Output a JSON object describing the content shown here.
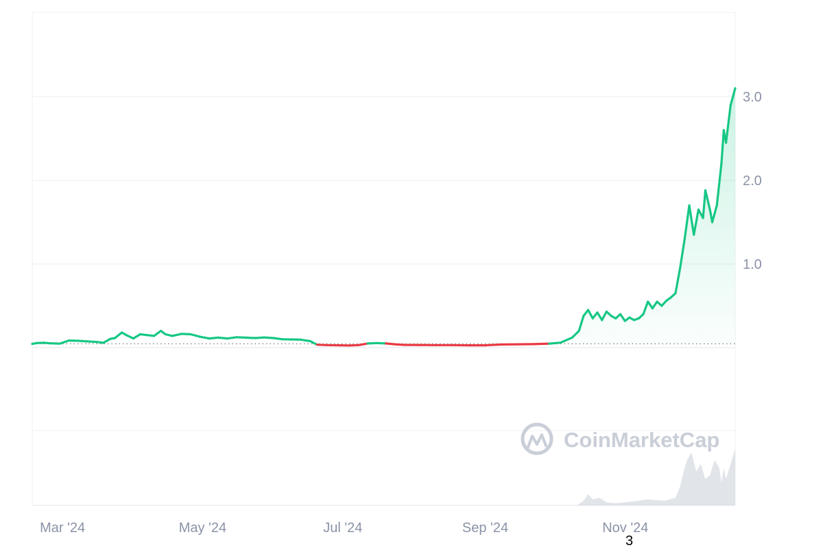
{
  "chart_data": {
    "type": "area",
    "title": "",
    "xlabel": "",
    "ylabel": "",
    "x_axis_type": "date",
    "baseline_value": 0.046,
    "ylim": [
      -0.9,
      3.9
    ],
    "x_range": [
      "2024-02-21",
      "2024-12-23"
    ],
    "y_ticks": [
      {
        "value": 1.0,
        "label": "1.0"
      },
      {
        "value": 2.0,
        "label": "2.0"
      },
      {
        "value": 3.0,
        "label": "3.0"
      }
    ],
    "x_ticks": [
      {
        "date": "2024-03-01",
        "label": "Mar '24"
      },
      {
        "date": "2024-05-01",
        "label": "May '24"
      },
      {
        "date": "2024-07-01",
        "label": "Jul '24"
      },
      {
        "date": "2024-09-01",
        "label": "Sep '24"
      },
      {
        "date": "2024-11-01",
        "label": "Nov '24"
      }
    ],
    "grid": true,
    "colors": {
      "up": "#16c784",
      "down": "#ea3943",
      "grid": "#eef0f3",
      "baseline": "#7a7a7a",
      "tick_text": "#8a92a6",
      "watermark": "#c9ced8",
      "volume": "#d9dde4"
    },
    "series": [
      {
        "points": [
          [
            "2024-02-21",
            0.045
          ],
          [
            "2024-02-23",
            0.055
          ],
          [
            "2024-02-26",
            0.058
          ],
          [
            "2024-02-29",
            0.052
          ],
          [
            "2024-03-04",
            0.048
          ],
          [
            "2024-03-08",
            0.085
          ],
          [
            "2024-03-12",
            0.082
          ],
          [
            "2024-03-16",
            0.075
          ],
          [
            "2024-03-20",
            0.068
          ],
          [
            "2024-03-23",
            0.058
          ],
          [
            "2024-03-26",
            0.105
          ],
          [
            "2024-03-28",
            0.115
          ],
          [
            "2024-03-31",
            0.18
          ],
          [
            "2024-04-02",
            0.15
          ],
          [
            "2024-04-05",
            0.11
          ],
          [
            "2024-04-08",
            0.16
          ],
          [
            "2024-04-11",
            0.15
          ],
          [
            "2024-04-14",
            0.14
          ],
          [
            "2024-04-17",
            0.2
          ],
          [
            "2024-04-19",
            0.16
          ],
          [
            "2024-04-22",
            0.14
          ],
          [
            "2024-04-26",
            0.165
          ],
          [
            "2024-04-30",
            0.16
          ],
          [
            "2024-05-04",
            0.13
          ],
          [
            "2024-05-08",
            0.11
          ],
          [
            "2024-05-12",
            0.12
          ],
          [
            "2024-05-16",
            0.11
          ],
          [
            "2024-05-20",
            0.125
          ],
          [
            "2024-05-24",
            0.12
          ],
          [
            "2024-05-28",
            0.115
          ],
          [
            "2024-06-01",
            0.122
          ],
          [
            "2024-06-05",
            0.115
          ],
          [
            "2024-06-09",
            0.1
          ],
          [
            "2024-06-13",
            0.098
          ],
          [
            "2024-06-17",
            0.095
          ],
          [
            "2024-06-21",
            0.078
          ],
          [
            "2024-06-24",
            0.035
          ],
          [
            "2024-06-28",
            0.03
          ],
          [
            "2024-07-04",
            0.028
          ],
          [
            "2024-07-08",
            0.025
          ],
          [
            "2024-07-12",
            0.03
          ],
          [
            "2024-07-16",
            0.05
          ],
          [
            "2024-07-20",
            0.055
          ],
          [
            "2024-07-24",
            0.05
          ],
          [
            "2024-07-28",
            0.04
          ],
          [
            "2024-08-01",
            0.033
          ],
          [
            "2024-08-08",
            0.032
          ],
          [
            "2024-08-15",
            0.03
          ],
          [
            "2024-08-22",
            0.03
          ],
          [
            "2024-08-29",
            0.028
          ],
          [
            "2024-09-05",
            0.028
          ],
          [
            "2024-09-12",
            0.038
          ],
          [
            "2024-09-19",
            0.04
          ],
          [
            "2024-09-26",
            0.042
          ],
          [
            "2024-10-03",
            0.048
          ],
          [
            "2024-10-08",
            0.06
          ],
          [
            "2024-10-13",
            0.12
          ],
          [
            "2024-10-16",
            0.2
          ],
          [
            "2024-10-18",
            0.38
          ],
          [
            "2024-10-20",
            0.45
          ],
          [
            "2024-10-22",
            0.35
          ],
          [
            "2024-10-24",
            0.42
          ],
          [
            "2024-10-26",
            0.33
          ],
          [
            "2024-10-28",
            0.43
          ],
          [
            "2024-10-30",
            0.38
          ],
          [
            "2024-11-01",
            0.35
          ],
          [
            "2024-11-03",
            0.4
          ],
          [
            "2024-11-05",
            0.32
          ],
          [
            "2024-11-07",
            0.36
          ],
          [
            "2024-11-09",
            0.33
          ],
          [
            "2024-11-11",
            0.35
          ],
          [
            "2024-11-13",
            0.4
          ],
          [
            "2024-11-15",
            0.55
          ],
          [
            "2024-11-17",
            0.47
          ],
          [
            "2024-11-19",
            0.55
          ],
          [
            "2024-11-21",
            0.5
          ],
          [
            "2024-11-23",
            0.56
          ],
          [
            "2024-11-25",
            0.6
          ],
          [
            "2024-11-27",
            0.65
          ],
          [
            "2024-11-29",
            0.95
          ],
          [
            "2024-12-01",
            1.3
          ],
          [
            "2024-12-03",
            1.7
          ],
          [
            "2024-12-05",
            1.35
          ],
          [
            "2024-12-07",
            1.65
          ],
          [
            "2024-12-09",
            1.55
          ],
          [
            "2024-12-10",
            1.88
          ],
          [
            "2024-12-12",
            1.65
          ],
          [
            "2024-12-13",
            1.5
          ],
          [
            "2024-12-15",
            1.7
          ],
          [
            "2024-12-17",
            2.2
          ],
          [
            "2024-12-18",
            2.6
          ],
          [
            "2024-12-19",
            2.45
          ],
          [
            "2024-12-21",
            2.9
          ],
          [
            "2024-12-23",
            3.1
          ]
        ]
      }
    ],
    "volume_shape": [
      [
        "2024-10-15",
        0.0
      ],
      [
        "2024-10-18",
        0.06
      ],
      [
        "2024-10-20",
        0.15
      ],
      [
        "2024-10-22",
        0.08
      ],
      [
        "2024-10-25",
        0.1
      ],
      [
        "2024-10-28",
        0.04
      ],
      [
        "2024-11-01",
        0.03
      ],
      [
        "2024-11-08",
        0.05
      ],
      [
        "2024-11-15",
        0.08
      ],
      [
        "2024-11-22",
        0.06
      ],
      [
        "2024-11-27",
        0.1
      ],
      [
        "2024-11-29",
        0.25
      ],
      [
        "2024-12-01",
        0.5
      ],
      [
        "2024-12-02",
        0.6
      ],
      [
        "2024-12-04",
        0.7
      ],
      [
        "2024-12-06",
        0.45
      ],
      [
        "2024-12-08",
        0.55
      ],
      [
        "2024-12-10",
        0.35
      ],
      [
        "2024-12-12",
        0.4
      ],
      [
        "2024-12-14",
        0.6
      ],
      [
        "2024-12-16",
        0.5
      ],
      [
        "2024-12-17",
        0.3
      ],
      [
        "2024-12-18",
        0.5
      ],
      [
        "2024-12-19",
        0.35
      ],
      [
        "2024-12-21",
        0.55
      ],
      [
        "2024-12-23",
        0.75
      ]
    ]
  },
  "watermark": {
    "text": "CoinMarketCap",
    "icon": "coinmarketcap-logo-icon"
  },
  "footnote": "3"
}
